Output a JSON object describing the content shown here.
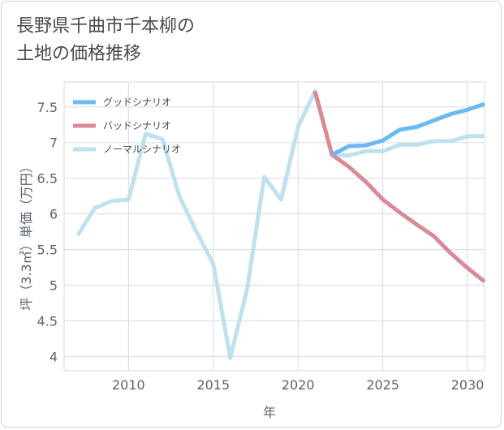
{
  "title_line1": "長野県千曲市千本柳の",
  "title_line2": "土地の価格推移",
  "chart_data": {
    "type": "line",
    "xlabel": "年",
    "ylabel": "坪（3.3㎡）単価（万円）",
    "xlim": [
      2006.2,
      2031
    ],
    "ylim": [
      3.8,
      7.85
    ],
    "x_ticks": [
      2010,
      2015,
      2020,
      2025,
      2030
    ],
    "y_ticks": [
      4,
      4.5,
      5,
      5.5,
      6,
      6.5,
      7,
      7.5
    ],
    "grid": true,
    "legend_position": "top-left",
    "series": [
      {
        "name": "グッドシナリオ",
        "color": "#6cb8f0",
        "x": [
          2022,
          2023,
          2024,
          2025,
          2026,
          2027,
          2028,
          2029,
          2030,
          2031
        ],
        "values": [
          6.83,
          6.95,
          6.96,
          7.03,
          7.18,
          7.22,
          7.31,
          7.4,
          7.46,
          7.54
        ]
      },
      {
        "name": "バッドシナリオ",
        "color": "#d98a94",
        "x": [
          2021,
          2022,
          2023,
          2024,
          2025,
          2026,
          2027,
          2028,
          2029,
          2030,
          2031
        ],
        "values": [
          7.72,
          6.83,
          6.66,
          6.45,
          6.2,
          6.02,
          5.85,
          5.69,
          5.45,
          5.24,
          5.05
        ]
      },
      {
        "name": "ノーマルシナリオ",
        "color": "#bfe0ee",
        "x": [
          2007,
          2008,
          2009,
          2010,
          2011,
          2012,
          2013,
          2014,
          2015,
          2016,
          2017,
          2018,
          2019,
          2020,
          2021,
          2022,
          2023,
          2024,
          2025,
          2026,
          2027,
          2028,
          2029,
          2030,
          2031
        ],
        "values": [
          5.7,
          6.08,
          6.18,
          6.2,
          7.12,
          7.05,
          6.25,
          5.75,
          5.3,
          3.98,
          4.95,
          6.52,
          6.2,
          7.22,
          7.72,
          6.83,
          6.82,
          6.88,
          6.88,
          6.97,
          6.97,
          7.02,
          7.02,
          7.09,
          7.09
        ]
      }
    ]
  }
}
